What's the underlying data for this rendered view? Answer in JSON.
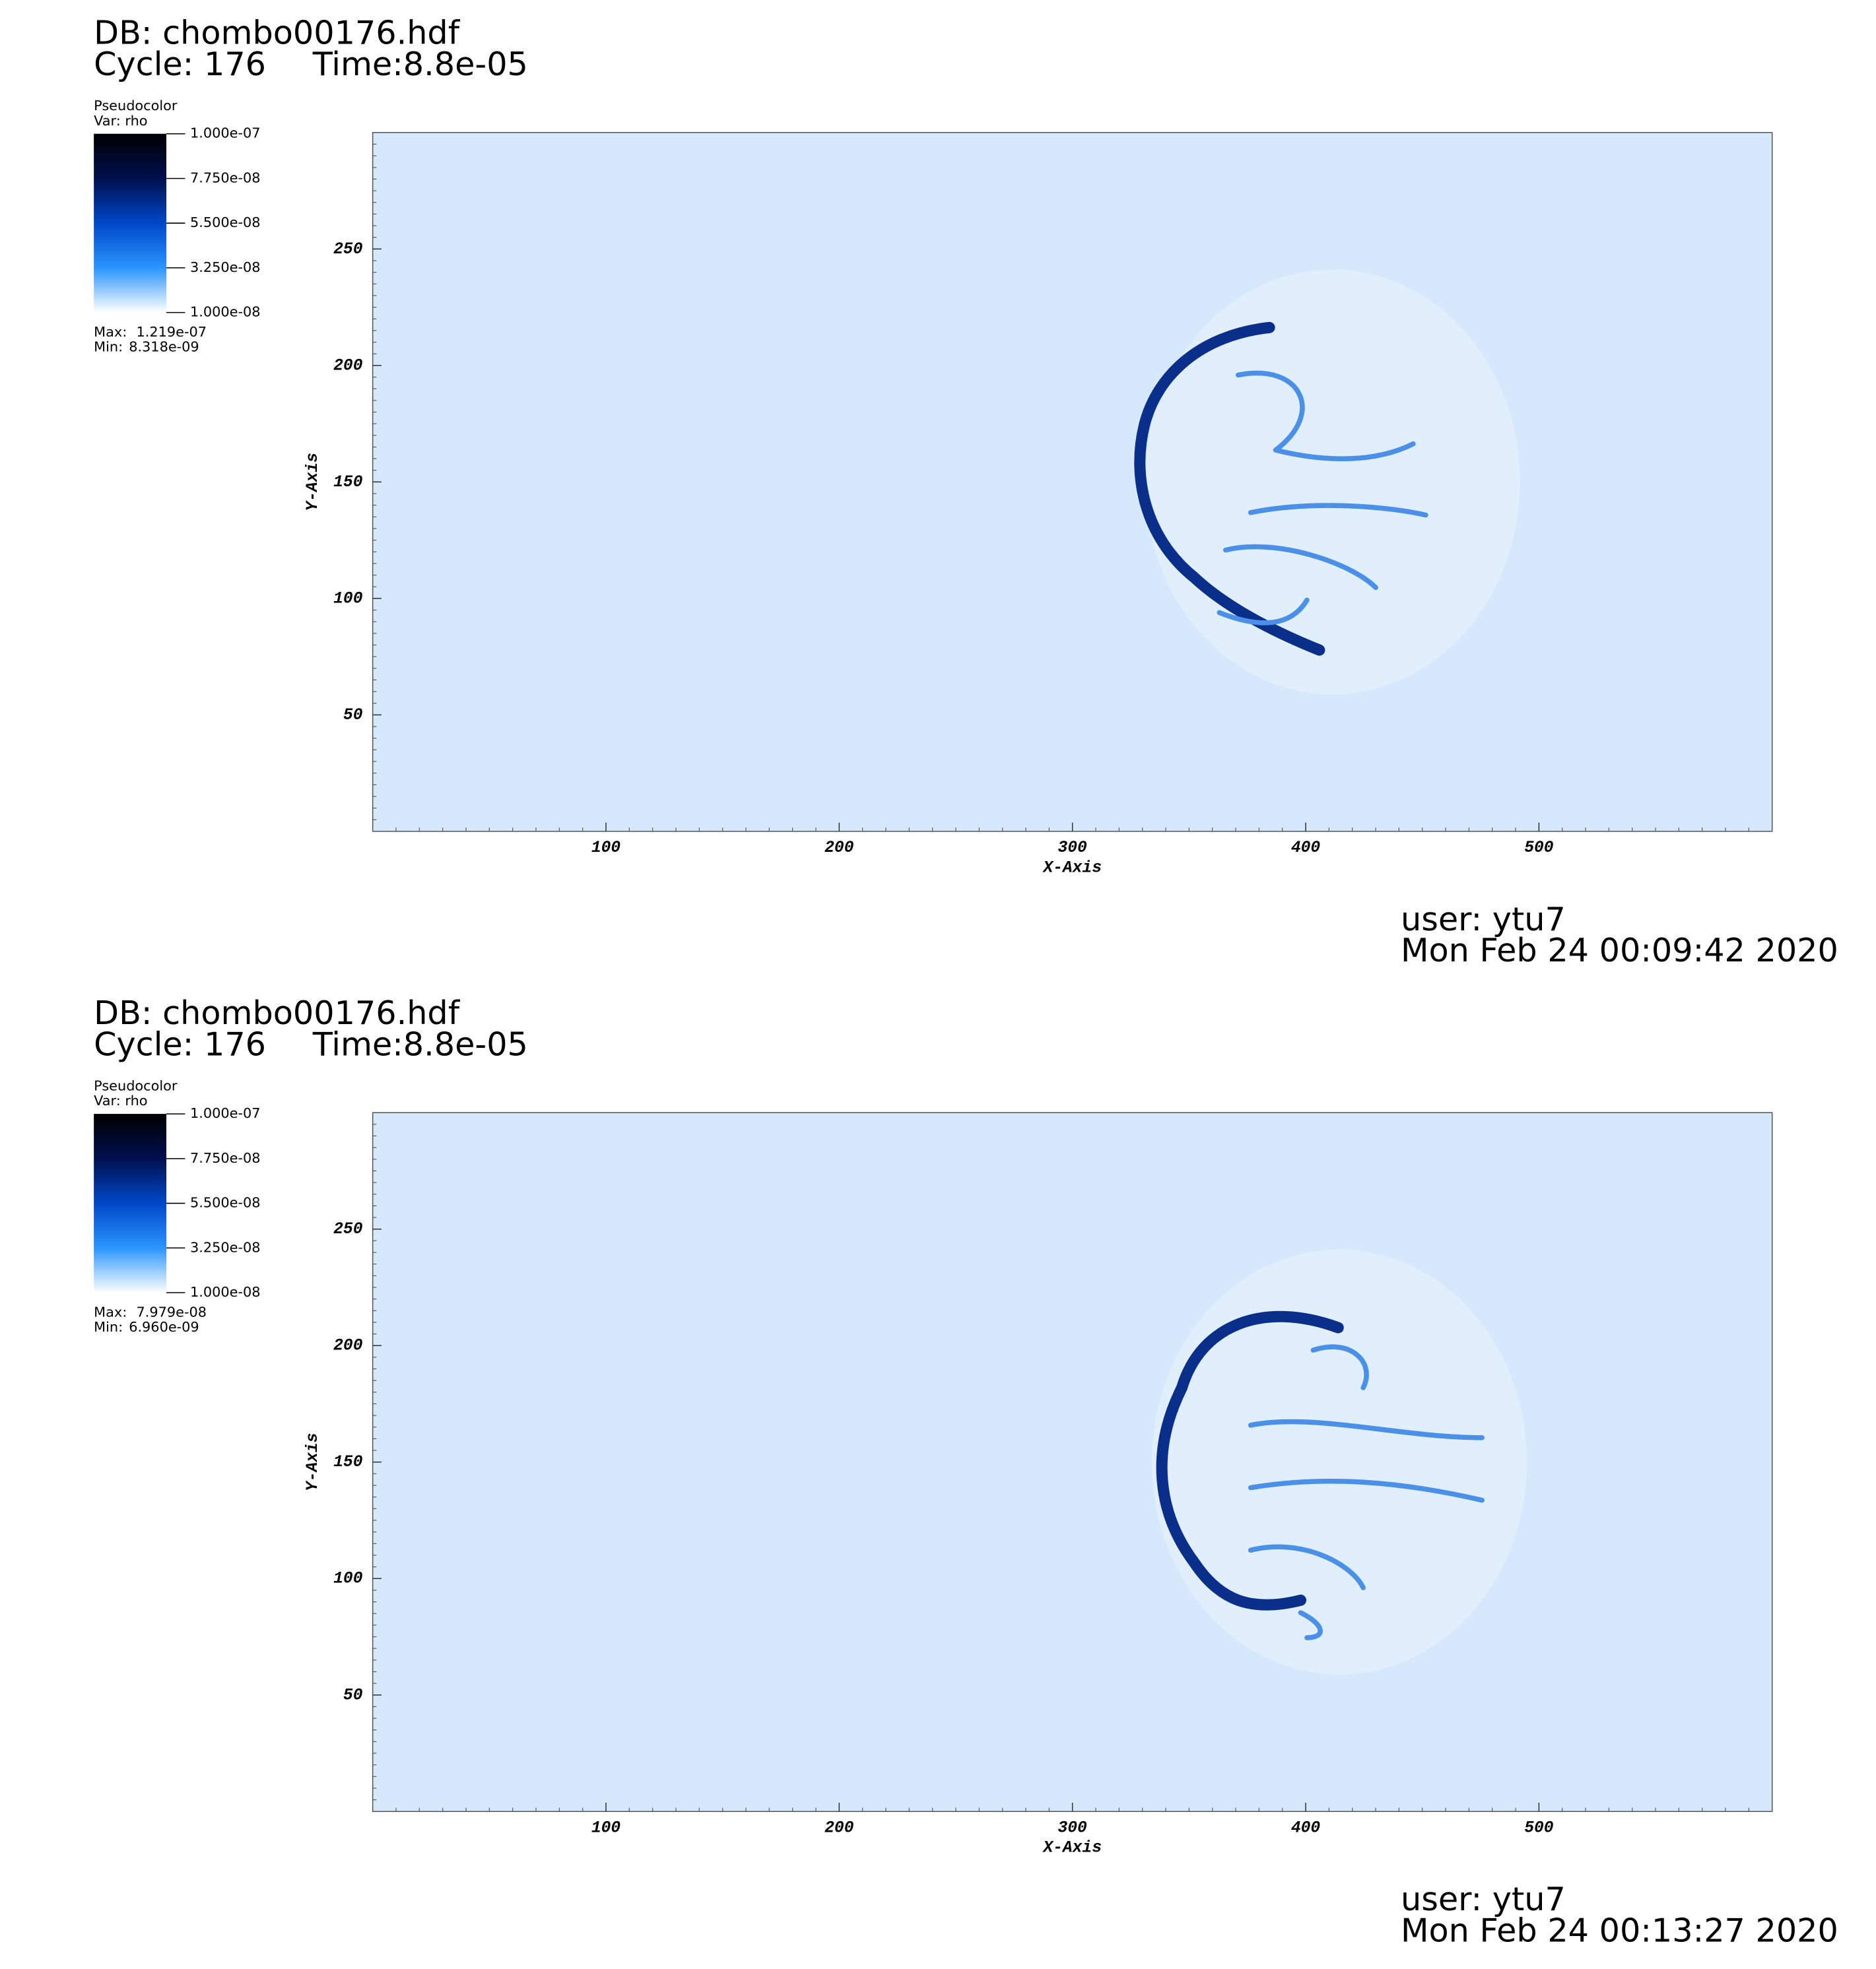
{
  "chart_data": [
    {
      "type": "pseudocolor",
      "title": "DB: chombo00176.hdf",
      "cycle": "Cycle: 176",
      "time": "Time:8.8e-05",
      "legend_title": "Pseudocolor",
      "variable": "Var: rho",
      "colormap": [
        "#ffffff",
        "#2a95ff",
        "#0048c8",
        "#00104f",
        "#000000"
      ],
      "clim": [
        1e-08,
        1e-07
      ],
      "cticks": [
        {
          "value": 1e-07,
          "label": "1.000e-07"
        },
        {
          "value": 7.75e-08,
          "label": "7.750e-08"
        },
        {
          "value": 5.5e-08,
          "label": "5.500e-08"
        },
        {
          "value": 3.25e-08,
          "label": "3.250e-08"
        },
        {
          "value": 1e-08,
          "label": "1.000e-08"
        }
      ],
      "max_caption": "Max:",
      "max": {
        "value": 1.219e-07,
        "label": "1.219e-07"
      },
      "min_caption": "Min:",
      "min": {
        "value": 8.318e-09,
        "label": "8.318e-09"
      },
      "xlabel": "X-Axis",
      "ylabel": "Y-Axis",
      "xlim": [
        0,
        600
      ],
      "ylim": [
        0,
        300
      ],
      "xticks": [
        100,
        200,
        300,
        400,
        500
      ],
      "yticks": [
        50,
        100,
        150,
        200,
        250
      ],
      "user": "user: ytu7",
      "date": "Mon Feb 24 00:09:42 2020"
    },
    {
      "type": "pseudocolor",
      "title": "DB: chombo00176.hdf",
      "cycle": "Cycle: 176",
      "time": "Time:8.8e-05",
      "legend_title": "Pseudocolor",
      "variable": "Var: rho",
      "colormap": [
        "#ffffff",
        "#2a95ff",
        "#0048c8",
        "#00104f",
        "#000000"
      ],
      "clim": [
        1e-08,
        1e-07
      ],
      "cticks": [
        {
          "value": 1e-07,
          "label": "1.000e-07"
        },
        {
          "value": 7.75e-08,
          "label": "7.750e-08"
        },
        {
          "value": 5.5e-08,
          "label": "5.500e-08"
        },
        {
          "value": 3.25e-08,
          "label": "3.250e-08"
        },
        {
          "value": 1e-08,
          "label": "1.000e-08"
        }
      ],
      "max_caption": "Max:",
      "max": {
        "value": 7.979e-08,
        "label": "7.979e-08"
      },
      "min_caption": "Min:",
      "min": {
        "value": 6.96e-09,
        "label": "6.960e-09"
      },
      "xlabel": "X-Axis",
      "ylabel": "Y-Axis",
      "xlim": [
        0,
        600
      ],
      "ylim": [
        0,
        300
      ],
      "xticks": [
        100,
        200,
        300,
        400,
        500
      ],
      "yticks": [
        50,
        100,
        150,
        200,
        250
      ],
      "user": "user: ytu7",
      "date": "Mon Feb 24 00:13:27 2020"
    }
  ]
}
